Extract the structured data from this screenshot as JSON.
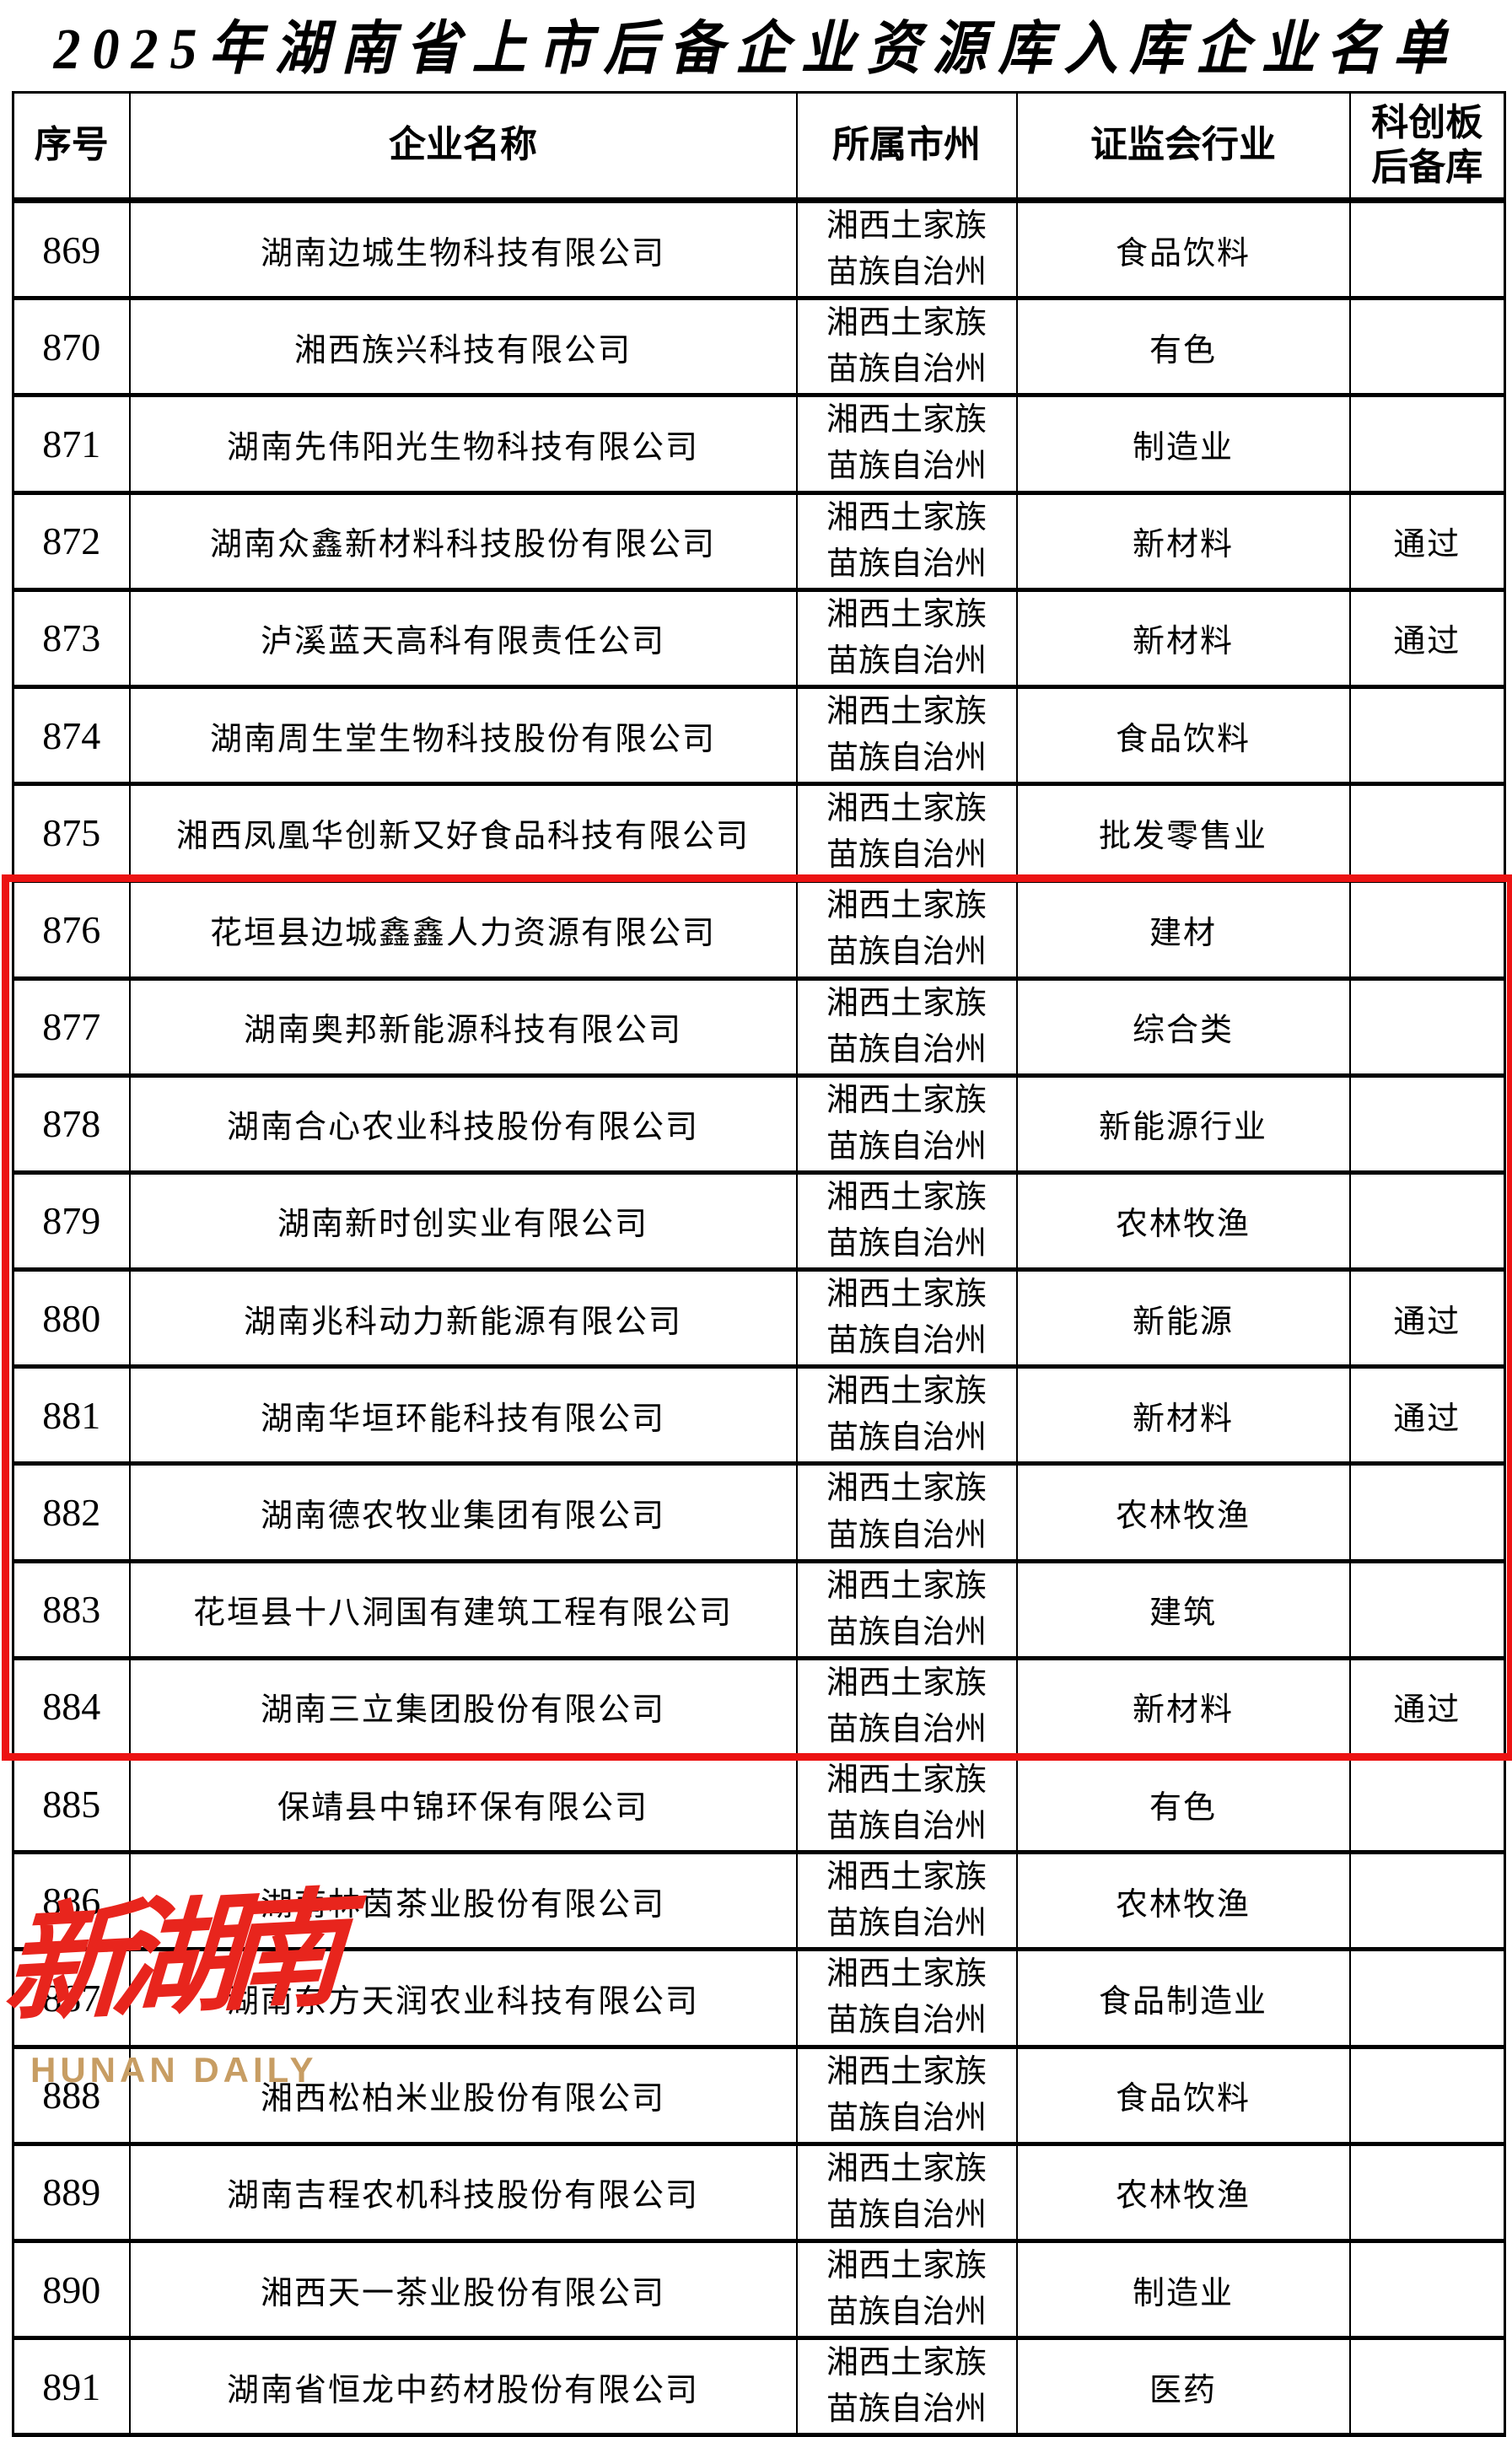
{
  "page": {
    "title": "2025年湖南省上市后备企业资源库入库企业名单"
  },
  "table": {
    "headers": [
      "序号",
      "企业名称",
      "所属市州",
      "证监会行业",
      "科创板\n后备库"
    ],
    "rows": [
      {
        "no": "869",
        "name": "湖南边城生物科技有限公司",
        "city": "湘西土家族\n苗族自治州",
        "industry": "食品饮料",
        "star": "",
        "highlighted": false
      },
      {
        "no": "870",
        "name": "湘西族兴科技有限公司",
        "city": "湘西土家族\n苗族自治州",
        "industry": "有色",
        "star": "",
        "highlighted": false
      },
      {
        "no": "871",
        "name": "湖南先伟阳光生物科技有限公司",
        "city": "湘西土家族\n苗族自治州",
        "industry": "制造业",
        "star": "",
        "highlighted": false
      },
      {
        "no": "872",
        "name": "湖南众鑫新材料科技股份有限公司",
        "city": "湘西土家族\n苗族自治州",
        "industry": "新材料",
        "star": "通过",
        "highlighted": false
      },
      {
        "no": "873",
        "name": "泸溪蓝天高科有限责任公司",
        "city": "湘西土家族\n苗族自治州",
        "industry": "新材料",
        "star": "通过",
        "highlighted": false
      },
      {
        "no": "874",
        "name": "湖南周生堂生物科技股份有限公司",
        "city": "湘西土家族\n苗族自治州",
        "industry": "食品饮料",
        "star": "",
        "highlighted": false
      },
      {
        "no": "875",
        "name": "湘西凤凰华创新又好食品科技有限公司",
        "city": "湘西土家族\n苗族自治州",
        "industry": "批发零售业",
        "star": "",
        "highlighted": false
      },
      {
        "no": "876",
        "name": "花垣县边城鑫鑫人力资源有限公司",
        "city": "湘西土家族\n苗族自治州",
        "industry": "建材",
        "star": "",
        "highlighted": true
      },
      {
        "no": "877",
        "name": "湖南奥邦新能源科技有限公司",
        "city": "湘西土家族\n苗族自治州",
        "industry": "综合类",
        "star": "",
        "highlighted": true
      },
      {
        "no": "878",
        "name": "湖南合心农业科技股份有限公司",
        "city": "湘西土家族\n苗族自治州",
        "industry": "新能源行业",
        "star": "",
        "highlighted": true
      },
      {
        "no": "879",
        "name": "湖南新时创实业有限公司",
        "city": "湘西土家族\n苗族自治州",
        "industry": "农林牧渔",
        "star": "",
        "highlighted": true
      },
      {
        "no": "880",
        "name": "湖南兆科动力新能源有限公司",
        "city": "湘西土家族\n苗族自治州",
        "industry": "新能源",
        "star": "通过",
        "highlighted": true
      },
      {
        "no": "881",
        "name": "湖南华垣环能科技有限公司",
        "city": "湘西土家族\n苗族自治州",
        "industry": "新材料",
        "star": "通过",
        "highlighted": true
      },
      {
        "no": "882",
        "name": "湖南德农牧业集团有限公司",
        "city": "湘西土家族\n苗族自治州",
        "industry": "农林牧渔",
        "star": "",
        "highlighted": true
      },
      {
        "no": "883",
        "name": "花垣县十八洞国有建筑工程有限公司",
        "city": "湘西土家族\n苗族自治州",
        "industry": "建筑",
        "star": "",
        "highlighted": true
      },
      {
        "no": "884",
        "name": "湖南三立集团股份有限公司",
        "city": "湘西土家族\n苗族自治州",
        "industry": "新材料",
        "star": "通过",
        "highlighted": true
      },
      {
        "no": "885",
        "name": "保靖县中锦环保有限公司",
        "city": "湘西土家族\n苗族自治州",
        "industry": "有色",
        "star": "",
        "highlighted": false
      },
      {
        "no": "886",
        "name": "湖南林茵茶业股份有限公司",
        "city": "湘西土家族\n苗族自治州",
        "industry": "农林牧渔",
        "star": "",
        "highlighted": false
      },
      {
        "no": "887",
        "name": "湖南东方天润农业科技有限公司",
        "city": "湘西土家族\n苗族自治州",
        "industry": "食品制造业",
        "star": "",
        "highlighted": false
      },
      {
        "no": "888",
        "name": "湘西松柏米业股份有限公司",
        "city": "湘西土家族\n苗族自治州",
        "industry": "食品饮料",
        "star": "",
        "highlighted": false
      },
      {
        "no": "889",
        "name": "湖南吉程农机科技股份有限公司",
        "city": "湘西土家族\n苗族自治州",
        "industry": "农林牧渔",
        "star": "",
        "highlighted": false
      },
      {
        "no": "890",
        "name": "湘西天一茶业股份有限公司",
        "city": "湘西土家族\n苗族自治州",
        "industry": "制造业",
        "star": "",
        "highlighted": false
      },
      {
        "no": "891",
        "name": "湖南省恒龙中药材股份有限公司",
        "city": "湘西土家族\n苗族自治州",
        "industry": "医药",
        "star": "",
        "highlighted": false
      }
    ]
  },
  "highlight": {
    "color": "#ec1313",
    "first_row_no": "876",
    "last_row_no": "884"
  },
  "watermark": {
    "logo_text": "新湖南",
    "subtext": "HUNAN DAILY",
    "logo_color": "#e8251d",
    "subtext_color": "#c79d63"
  }
}
